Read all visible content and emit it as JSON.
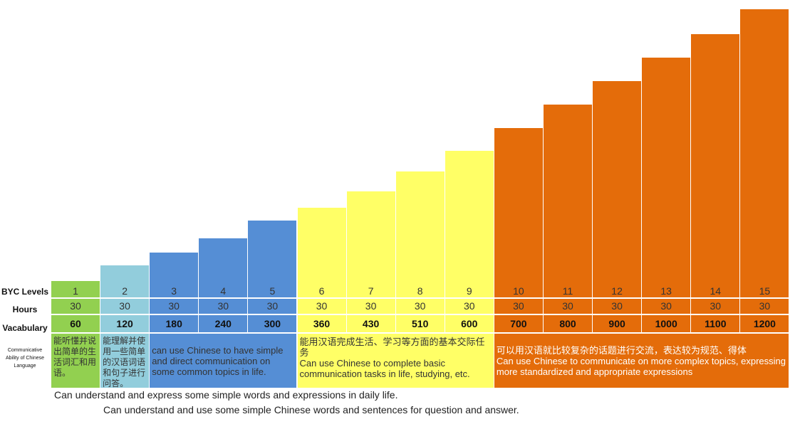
{
  "chart_data": {
    "type": "bar",
    "title": "",
    "row_labels": {
      "levels": "BYC Levels",
      "hours": "Hours",
      "vocabulary": "Vacabulary",
      "ability": "Communicative Ability of Chinese Language"
    },
    "levels": [
      "1",
      "2",
      "3",
      "4",
      "5",
      "6",
      "7",
      "8",
      "9",
      "10",
      "11",
      "12",
      "13",
      "14",
      "15"
    ],
    "hours": [
      "30",
      "30",
      "30",
      "30",
      "30",
      "30",
      "30",
      "30",
      "30",
      "30",
      "30",
      "30",
      "30",
      "30",
      "30"
    ],
    "vocabulary": [
      "60",
      "120",
      "180",
      "240",
      "300",
      "360",
      "430",
      "510",
      "600",
      "700",
      "800",
      "900",
      "1000",
      "1100",
      "1200"
    ],
    "groups": [
      {
        "levels": [
          1
        ],
        "color": "#92d050",
        "text": "能听懂并说出简单的生活词汇和用语。"
      },
      {
        "levels": [
          2
        ],
        "color": "#92cddc",
        "text": "能理解并使用一些简单的汉语词语和句子进行问答。"
      },
      {
        "levels": [
          3,
          4,
          5
        ],
        "color": "#558ed5",
        "text": "can use Chinese to have simple and direct communication on some common topics in life."
      },
      {
        "levels": [
          6,
          7,
          8,
          9
        ],
        "color": "#ffff66",
        "text": "能用汉语完成生活、学习等方面的基本交际任务",
        "text2": "Can use Chinese to complete basic communication tasks in life, studying, etc."
      },
      {
        "levels": [
          10,
          11,
          12,
          13,
          14,
          15
        ],
        "color": "#e46c0a",
        "text": "可以用汉语就比较复杂的话题进行交流，表达较为规范、得体",
        "text2": "Can use Chinese to communicate on more complex topics, expressing more standardized and appropriate expressions"
      }
    ],
    "notes": [
      "Can understand and express some simple words and expressions in daily life.",
      "Can understand and use some simple Chinese words and sentences for question and answer."
    ]
  }
}
